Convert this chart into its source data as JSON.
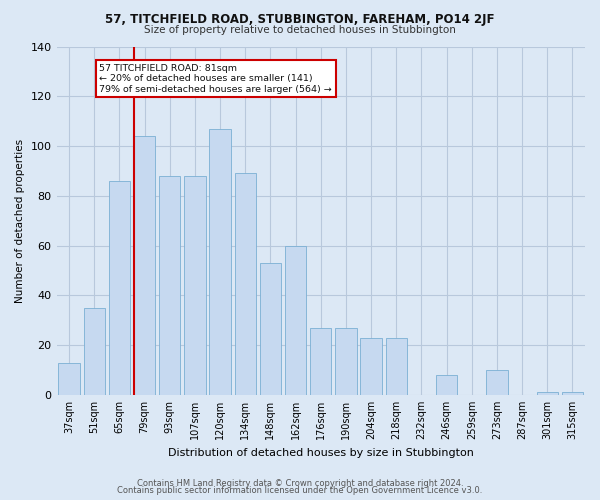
{
  "title": "57, TITCHFIELD ROAD, STUBBINGTON, FAREHAM, PO14 2JF",
  "subtitle": "Size of property relative to detached houses in Stubbington",
  "xlabel": "Distribution of detached houses by size in Stubbington",
  "ylabel": "Number of detached properties",
  "categories": [
    "37sqm",
    "51sqm",
    "65sqm",
    "79sqm",
    "93sqm",
    "107sqm",
    "120sqm",
    "134sqm",
    "148sqm",
    "162sqm",
    "176sqm",
    "190sqm",
    "204sqm",
    "218sqm",
    "232sqm",
    "246sqm",
    "259sqm",
    "273sqm",
    "287sqm",
    "301sqm",
    "315sqm"
  ],
  "values": [
    13,
    35,
    86,
    104,
    88,
    88,
    107,
    89,
    53,
    60,
    27,
    27,
    23,
    23,
    0,
    8,
    0,
    10,
    0,
    1,
    1
  ],
  "bar_color": "#c6d9f0",
  "bar_edge_color": "#7bafd4",
  "grid_color": "#b8c8dc",
  "background_color": "#dce8f5",
  "vline_color": "#cc0000",
  "annotation_text": "57 TITCHFIELD ROAD: 81sqm\n← 20% of detached houses are smaller (141)\n79% of semi-detached houses are larger (564) →",
  "annotation_box_color": "#ffffff",
  "annotation_box_edge": "#cc0000",
  "ylim": [
    0,
    140
  ],
  "yticks": [
    0,
    20,
    40,
    60,
    80,
    100,
    120,
    140
  ],
  "footer1": "Contains HM Land Registry data © Crown copyright and database right 2024.",
  "footer2": "Contains public sector information licensed under the Open Government Licence v3.0."
}
